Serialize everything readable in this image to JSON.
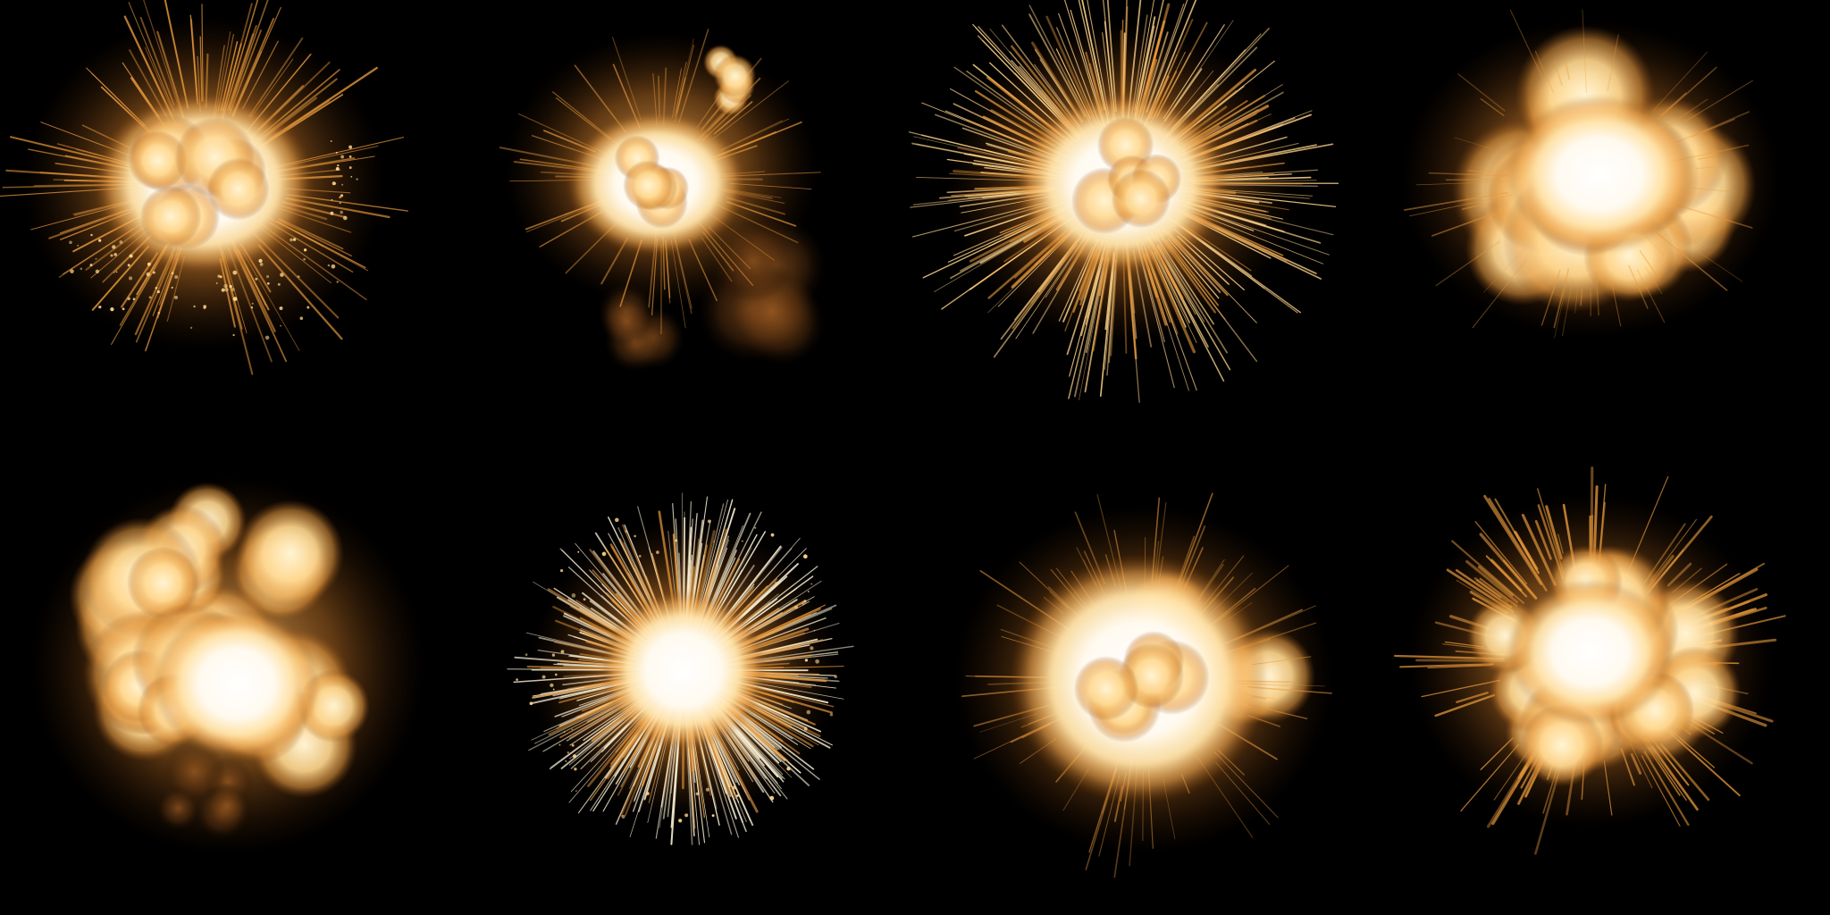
{
  "sheet": {
    "background": "#000000",
    "columns": 4,
    "rows": 2
  },
  "palette": {
    "core": "#ffffff",
    "hot": "#fff6d8",
    "warm": "#ffd48a",
    "flame": "#e89a3c",
    "ember": "#a85a1a",
    "smoke": "#5a3210"
  },
  "explosions": [
    {
      "row": 1,
      "col": 1,
      "style": "core-burst-with-sparks"
    },
    {
      "row": 1,
      "col": 2,
      "style": "core-with-smoke-trail"
    },
    {
      "row": 1,
      "col": 3,
      "style": "radial-spike-burst"
    },
    {
      "row": 1,
      "col": 4,
      "style": "soft-fireball-cloud"
    },
    {
      "row": 2,
      "col": 1,
      "style": "billowing-fire-cloud"
    },
    {
      "row": 2,
      "col": 2,
      "style": "dense-spark-ring"
    },
    {
      "row": 2,
      "col": 3,
      "style": "glowing-fireball"
    },
    {
      "row": 2,
      "col": 4,
      "style": "spiky-fire-cloud"
    }
  ]
}
